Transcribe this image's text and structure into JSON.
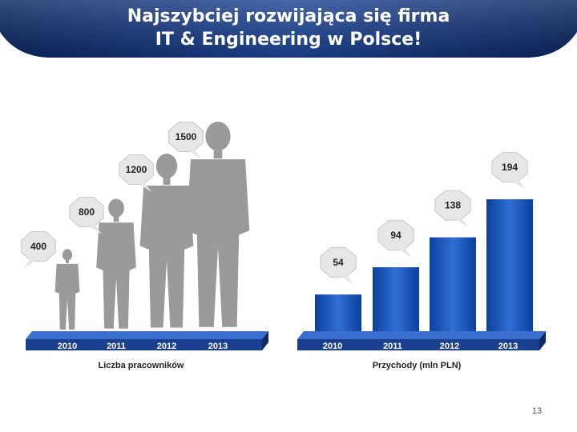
{
  "slide": {
    "title_line1": "Najszybciej rozwijająca się firma",
    "title_line2": "IT & Engineering w Polsce!",
    "slide_number": "13"
  },
  "colors": {
    "header_dark": "#0b2a6e",
    "header_light": "#2f5db8",
    "bar_dark": "#0c3f9e",
    "bar_light": "#2f6fd6",
    "platform": "#1a3f8f",
    "silhouette": "#9a9a9a",
    "bubble": "#e6e6e6"
  },
  "chart_data": [
    {
      "type": "bar",
      "xlabel": "Liczba pracowników",
      "categories": [
        "2010",
        "2011",
        "2012",
        "2013"
      ],
      "values": [
        400,
        800,
        1200,
        1500
      ],
      "data_labels": [
        "400",
        "800",
        "1200",
        "1500"
      ],
      "style": "pictogram"
    },
    {
      "type": "bar",
      "xlabel": "Przychody (mln PLN)",
      "categories": [
        "2010",
        "2011",
        "2012",
        "2013"
      ],
      "values": [
        54,
        94,
        138,
        194
      ],
      "data_labels": [
        "54",
        "94",
        "138",
        "194"
      ]
    }
  ]
}
